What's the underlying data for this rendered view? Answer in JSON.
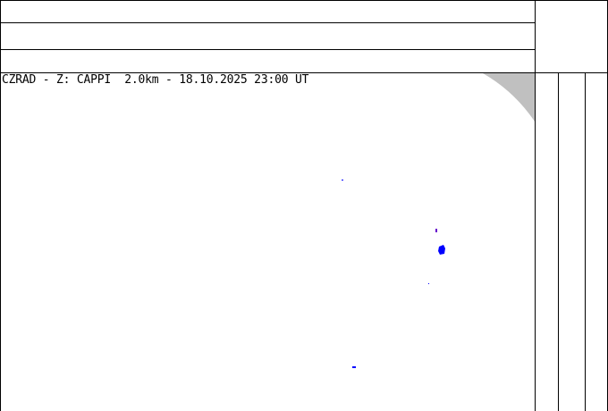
{
  "map": {
    "title": "CZRAD - Z: CAPPI  2.0km - 18.10.2025 23:00 UT",
    "coverage_edge_color": "#c0c0c0",
    "echo_color": "#0000ff"
  }
}
